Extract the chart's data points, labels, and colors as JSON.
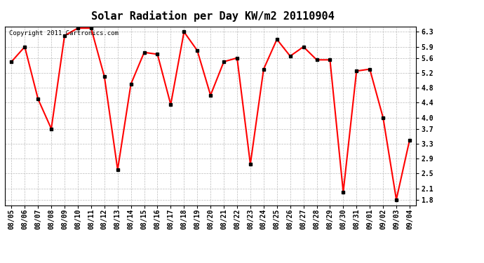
{
  "title": "Solar Radiation per Day KW/m2 20110904",
  "copyright": "Copyright 2011 Cartronics.com",
  "dates": [
    "08/05",
    "08/06",
    "08/07",
    "08/08",
    "08/09",
    "08/10",
    "08/11",
    "08/12",
    "08/13",
    "08/14",
    "08/15",
    "08/16",
    "08/17",
    "08/18",
    "08/19",
    "08/20",
    "08/21",
    "08/22",
    "08/23",
    "08/24",
    "08/25",
    "08/26",
    "08/27",
    "08/28",
    "08/29",
    "08/30",
    "08/31",
    "09/01",
    "09/02",
    "09/03",
    "09/04"
  ],
  "values": [
    5.5,
    5.9,
    4.5,
    3.7,
    6.2,
    6.4,
    6.4,
    5.1,
    2.6,
    4.9,
    5.75,
    5.7,
    4.35,
    6.3,
    5.8,
    4.6,
    5.5,
    5.6,
    2.75,
    5.3,
    6.1,
    5.65,
    5.9,
    5.55,
    5.55,
    2.0,
    5.25,
    5.3,
    4.0,
    1.8,
    3.4
  ],
  "line_color": "#ff0000",
  "marker": "s",
  "marker_size": 3,
  "marker_color": "#000000",
  "ylim": [
    1.65,
    6.45
  ],
  "yticks": [
    1.8,
    2.1,
    2.5,
    2.9,
    3.3,
    3.7,
    4.0,
    4.4,
    4.8,
    5.2,
    5.6,
    5.9,
    6.3
  ],
  "bg_color": "#ffffff",
  "grid_color": "#bbbbbb",
  "title_fontsize": 11,
  "tick_fontsize": 7,
  "copyright_fontsize": 6.5
}
